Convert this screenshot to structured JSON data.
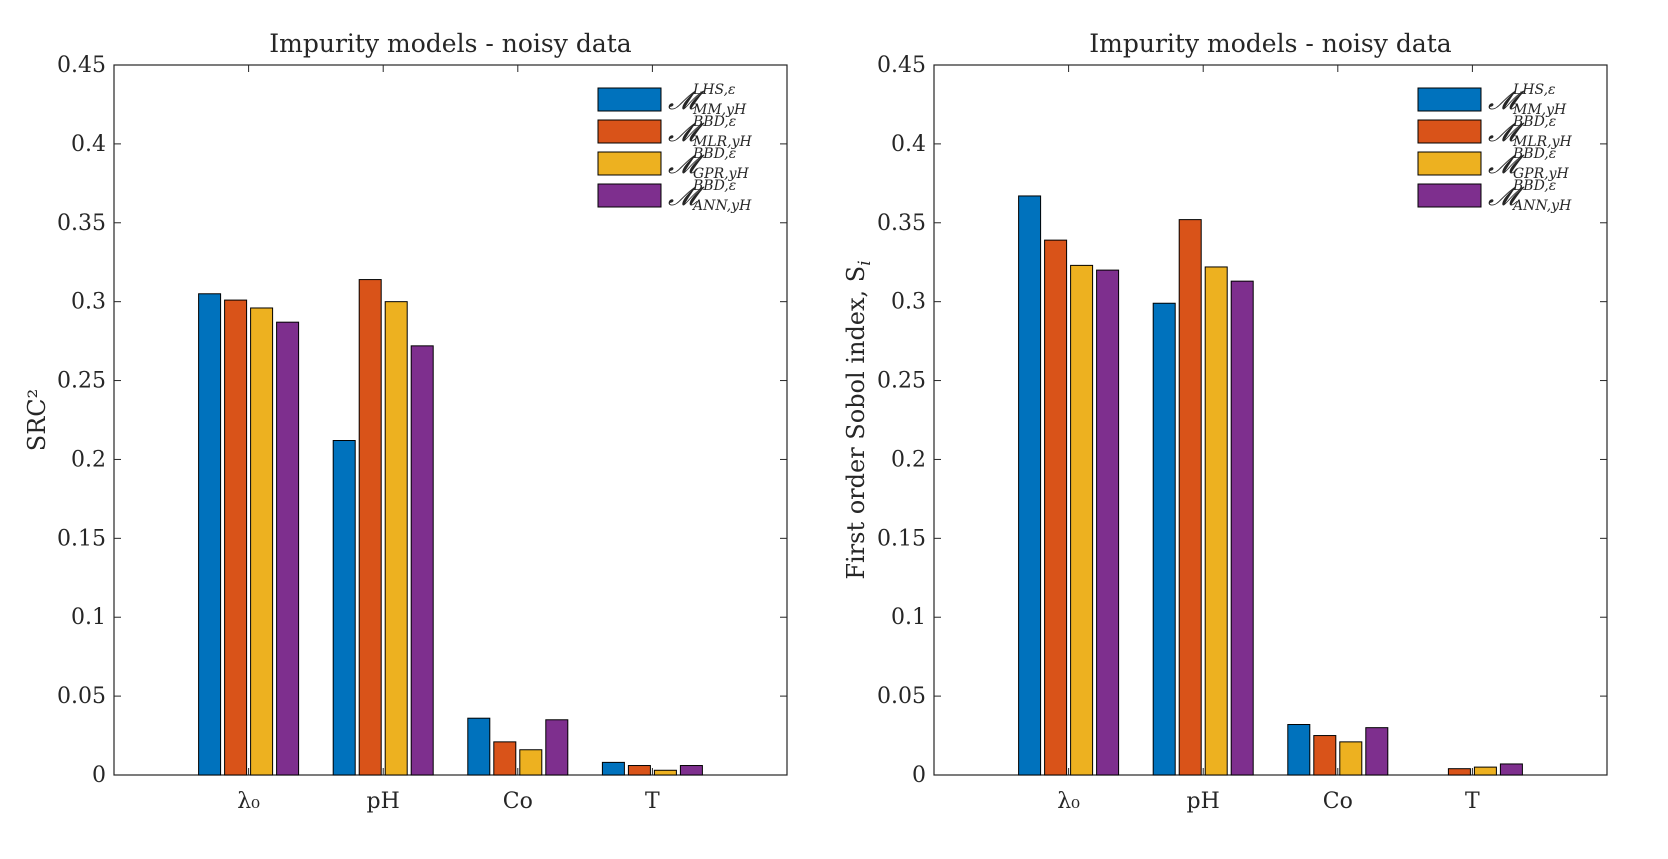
{
  "colors": {
    "axis": "#262626",
    "series": [
      "#0072BD",
      "#D95319",
      "#EDB120",
      "#7E2F8E"
    ]
  },
  "legend": {
    "placement": "top-right",
    "entries": [
      {
        "main": "𝓜",
        "sup": "LHS,ε",
        "sub": "MM,yH"
      },
      {
        "main": "𝓜",
        "sup": "BBD,ε",
        "sub": "MLR,yH"
      },
      {
        "main": "𝓜",
        "sup": "BBD,ε",
        "sub": "GPR,yH"
      },
      {
        "main": "𝓜",
        "sup": "BBD,ε",
        "sub": "ANN,yH"
      }
    ]
  },
  "chart_data": [
    {
      "type": "bar",
      "title": "Impurity models - noisy data",
      "ylabel": "SRC²",
      "xlabel": "",
      "categories": [
        "λ₀",
        "pH",
        "Co",
        "T"
      ],
      "ylim": [
        0,
        0.45
      ],
      "yticks": [
        "0",
        "0.05",
        "0.1",
        "0.15",
        "0.2",
        "0.25",
        "0.3",
        "0.35",
        "0.4",
        "0.45"
      ],
      "grid": false,
      "series": [
        {
          "values": [
            0.305,
            0.212,
            0.036,
            0.008
          ]
        },
        {
          "values": [
            0.301,
            0.314,
            0.021,
            0.006
          ]
        },
        {
          "values": [
            0.296,
            0.3,
            0.016,
            0.003
          ]
        },
        {
          "values": [
            0.287,
            0.272,
            0.035,
            0.006
          ]
        }
      ]
    },
    {
      "type": "bar",
      "title": "Impurity models - noisy data",
      "ylabel": "First order Sobol index, S",
      "ylabel_sub": "i",
      "xlabel": "",
      "categories": [
        "λ₀",
        "pH",
        "Co",
        "T"
      ],
      "ylim": [
        0,
        0.45
      ],
      "yticks": [
        "0",
        "0.05",
        "0.1",
        "0.15",
        "0.2",
        "0.25",
        "0.3",
        "0.35",
        "0.4",
        "0.45"
      ],
      "grid": false,
      "series": [
        {
          "values": [
            0.367,
            0.299,
            0.032,
            0.0
          ]
        },
        {
          "values": [
            0.339,
            0.352,
            0.025,
            0.004
          ]
        },
        {
          "values": [
            0.323,
            0.322,
            0.021,
            0.005
          ]
        },
        {
          "values": [
            0.32,
            0.313,
            0.03,
            0.007
          ]
        }
      ]
    }
  ]
}
